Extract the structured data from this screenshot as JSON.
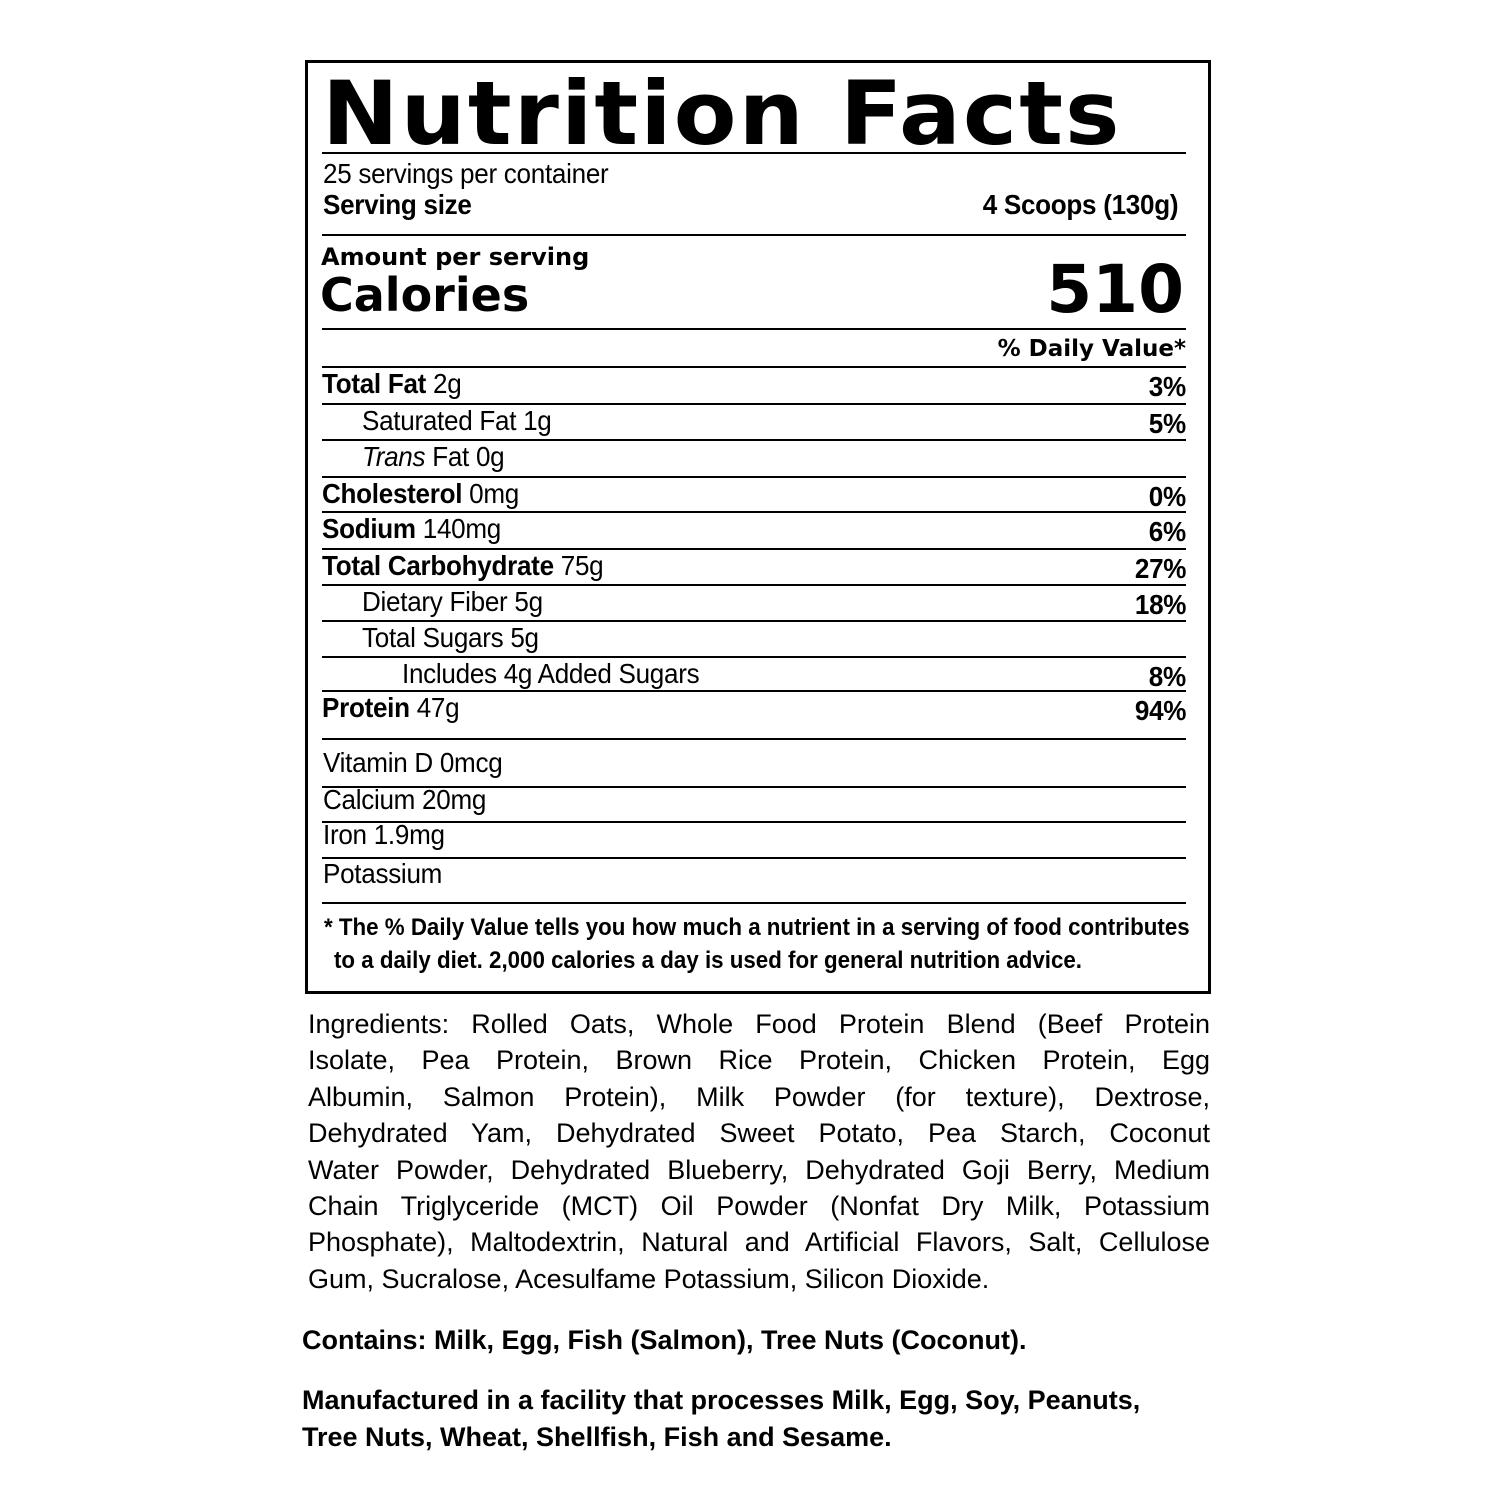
{
  "label": {
    "title": "Nutrition Facts",
    "servings_per_container": "25 servings per container",
    "serving_size_label": "Serving size",
    "serving_size_value": "4 Scoops (130g)",
    "amount_per_serving": "Amount per serving",
    "calories_label": "Calories",
    "calories_value": "510",
    "daily_value_header": "% Daily Value*",
    "nutrients": [
      {
        "name": "Total Fat",
        "amount": "2g",
        "dv": "3%"
      },
      {
        "name": "Saturated Fat 1g",
        "amount": "",
        "dv": "5%"
      },
      {
        "name": "Trans",
        "amount": "Fat 0g",
        "dv": ""
      },
      {
        "name": "Cholesterol",
        "amount": "0mg",
        "dv": "0%"
      },
      {
        "name": "Sodium",
        "amount": "140mg",
        "dv": "6%"
      },
      {
        "name": "Total Carbohydrate",
        "amount": "75g",
        "dv": "27%"
      },
      {
        "name": "Dietary Fiber 5g",
        "amount": "",
        "dv": "18%"
      },
      {
        "name": "Total Sugars 5g",
        "amount": "",
        "dv": ""
      },
      {
        "name": "Includes 4g Added Sugars",
        "amount": "",
        "dv": "8%"
      },
      {
        "name": "Protein",
        "amount": "47g",
        "dv": "94%"
      }
    ],
    "vitamins": [
      "Vitamin D 0mcg",
      "Calcium 20mg",
      "Iron 1.9mg",
      "Potassium"
    ],
    "footnote_line1": "* The % Daily Value tells you how much a nutrient in a serving of food contributes",
    "footnote_line2": "to a daily diet. 2,000 calories a day is used for general nutrition advice."
  },
  "ingredients_lines": [
    "Ingredients: Rolled Oats, Whole Food Protein Blend (Beef Protein",
    "Isolate, Pea Protein, Brown Rice Protein, Chicken Protein, Egg",
    "Albumin, Salmon Protein), Milk Powder (for texture), Dextrose,",
    "Dehydrated Yam, Dehydrated Sweet Potato, Pea Starch, Coconut",
    "Water Powder, Dehydrated Blueberry, Dehydrated Goji Berry, Medium",
    "Chain Triglyceride (MCT) Oil Powder (Nonfat Dry Milk, Potassium",
    "Phosphate), Maltodextrin, Natural and Artificial Flavors, Salt, Cellulose",
    "Gum, Sucralose, Acesulfame Potassium, Silicon Dioxide."
  ],
  "contains": "Contains: Milk, Egg, Fish (Salmon), Tree Nuts (Coconut).",
  "facility_line1": "Manufactured in a facility that processes Milk, Egg, Soy, Peanuts,",
  "facility_line2": "Tree Nuts, Wheat, Shellfish, Fish and Sesame."
}
